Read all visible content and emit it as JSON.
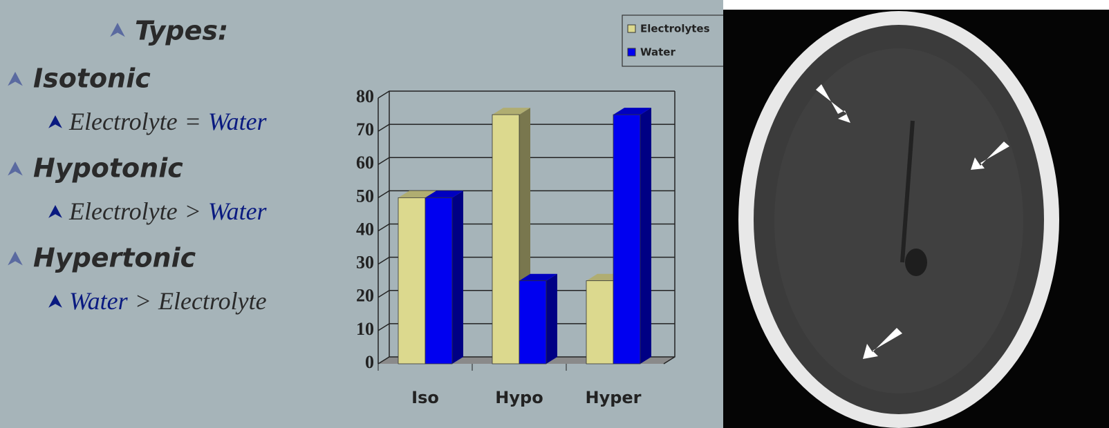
{
  "slide": {
    "heading": "Types:",
    "items": [
      {
        "label": "Isotonic",
        "detail": [
          {
            "text": "Electrolyte",
            "color": "#2a2a2a"
          },
          {
            "text": "=",
            "color": "#2a2a2a"
          },
          {
            "text": "Water",
            "color": "#0a1a80"
          }
        ]
      },
      {
        "label": "Hypotonic",
        "detail": [
          {
            "text": "Electrolyte",
            "color": "#2a2a2a"
          },
          {
            "text": ">",
            "color": "#2a2a2a"
          },
          {
            "text": "Water",
            "color": "#0a1a80"
          }
        ]
      },
      {
        "label": "Hypertonic",
        "detail": [
          {
            "text": "Water",
            "color": "#0a1a80"
          },
          {
            "text": ">",
            "color": "#2a2a2a"
          },
          {
            "text": "Electrolyte",
            "color": "#2a2a2a"
          }
        ]
      }
    ]
  },
  "chart_data": {
    "type": "bar3d",
    "categories": [
      "Iso",
      "Hypo",
      "Hyper"
    ],
    "series": [
      {
        "name": "Electrolytes",
        "color": "#dcd98e",
        "values": [
          50,
          75,
          25
        ]
      },
      {
        "name": "Water",
        "color": "#0000f0",
        "values": [
          50,
          25,
          75
        ]
      }
    ],
    "ylim": [
      0,
      80
    ],
    "yticks": [
      0,
      10,
      20,
      30,
      40,
      50,
      60,
      70,
      80
    ],
    "grid": true,
    "legend": "top-right"
  }
}
